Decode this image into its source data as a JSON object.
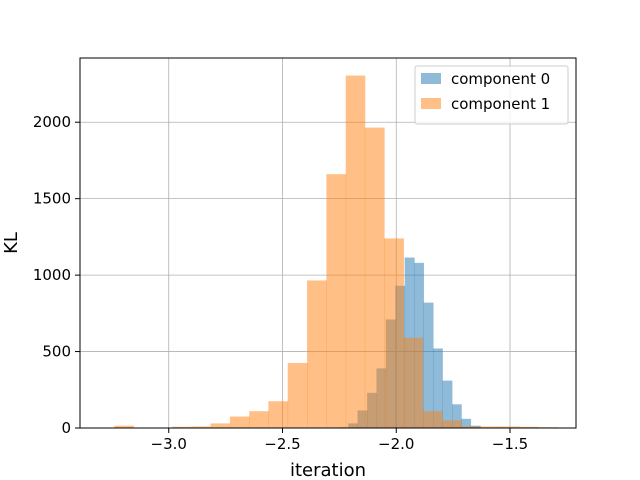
{
  "chart_data": {
    "type": "bar",
    "xlabel": "iteration",
    "ylabel": "KL",
    "xlim": [
      -3.39,
      -1.21
    ],
    "ylim": [
      0,
      2420
    ],
    "xticks": [
      {
        "value": -3.0,
        "label": "−3.0"
      },
      {
        "value": -2.5,
        "label": "−2.5"
      },
      {
        "value": -2.0,
        "label": "−2.0"
      },
      {
        "value": -1.5,
        "label": "−1.5"
      }
    ],
    "yticks": [
      {
        "value": 0,
        "label": "0"
      },
      {
        "value": 500,
        "label": "500"
      },
      {
        "value": 1000,
        "label": "1000"
      },
      {
        "value": 1500,
        "label": "1500"
      },
      {
        "value": 2000,
        "label": "2000"
      }
    ],
    "grid": true,
    "legend_position": "top-right",
    "series": [
      {
        "name": "component 0",
        "color": "#1f77b4",
        "opacity": 0.5,
        "bin_edges": [
          -2.253,
          -2.211,
          -2.17,
          -2.128,
          -2.087,
          -2.046,
          -2.004,
          -1.963,
          -1.921,
          -1.88,
          -1.838,
          -1.797,
          -1.755,
          -1.714,
          -1.673,
          -1.631
        ],
        "counts": [
          5,
          30,
          115,
          230,
          390,
          710,
          930,
          1115,
          1080,
          820,
          520,
          310,
          155,
          60,
          15
        ]
      },
      {
        "name": "component 1",
        "color": "#ff7f0e",
        "opacity": 0.5,
        "bin_edges": [
          -3.239,
          -3.155,
          -3.07,
          -2.985,
          -2.9,
          -2.816,
          -2.731,
          -2.646,
          -2.562,
          -2.477,
          -2.392,
          -2.307,
          -2.222,
          -2.138,
          -2.053,
          -1.968,
          -1.884,
          -1.799,
          -1.714,
          -1.629,
          -1.544,
          -1.459,
          -1.375,
          -1.29
        ],
        "counts": [
          15,
          2,
          0,
          8,
          10,
          30,
          75,
          110,
          175,
          425,
          965,
          1660,
          2305,
          1965,
          1240,
          590,
          110,
          50,
          10,
          10,
          10,
          8,
          5
        ]
      }
    ]
  }
}
